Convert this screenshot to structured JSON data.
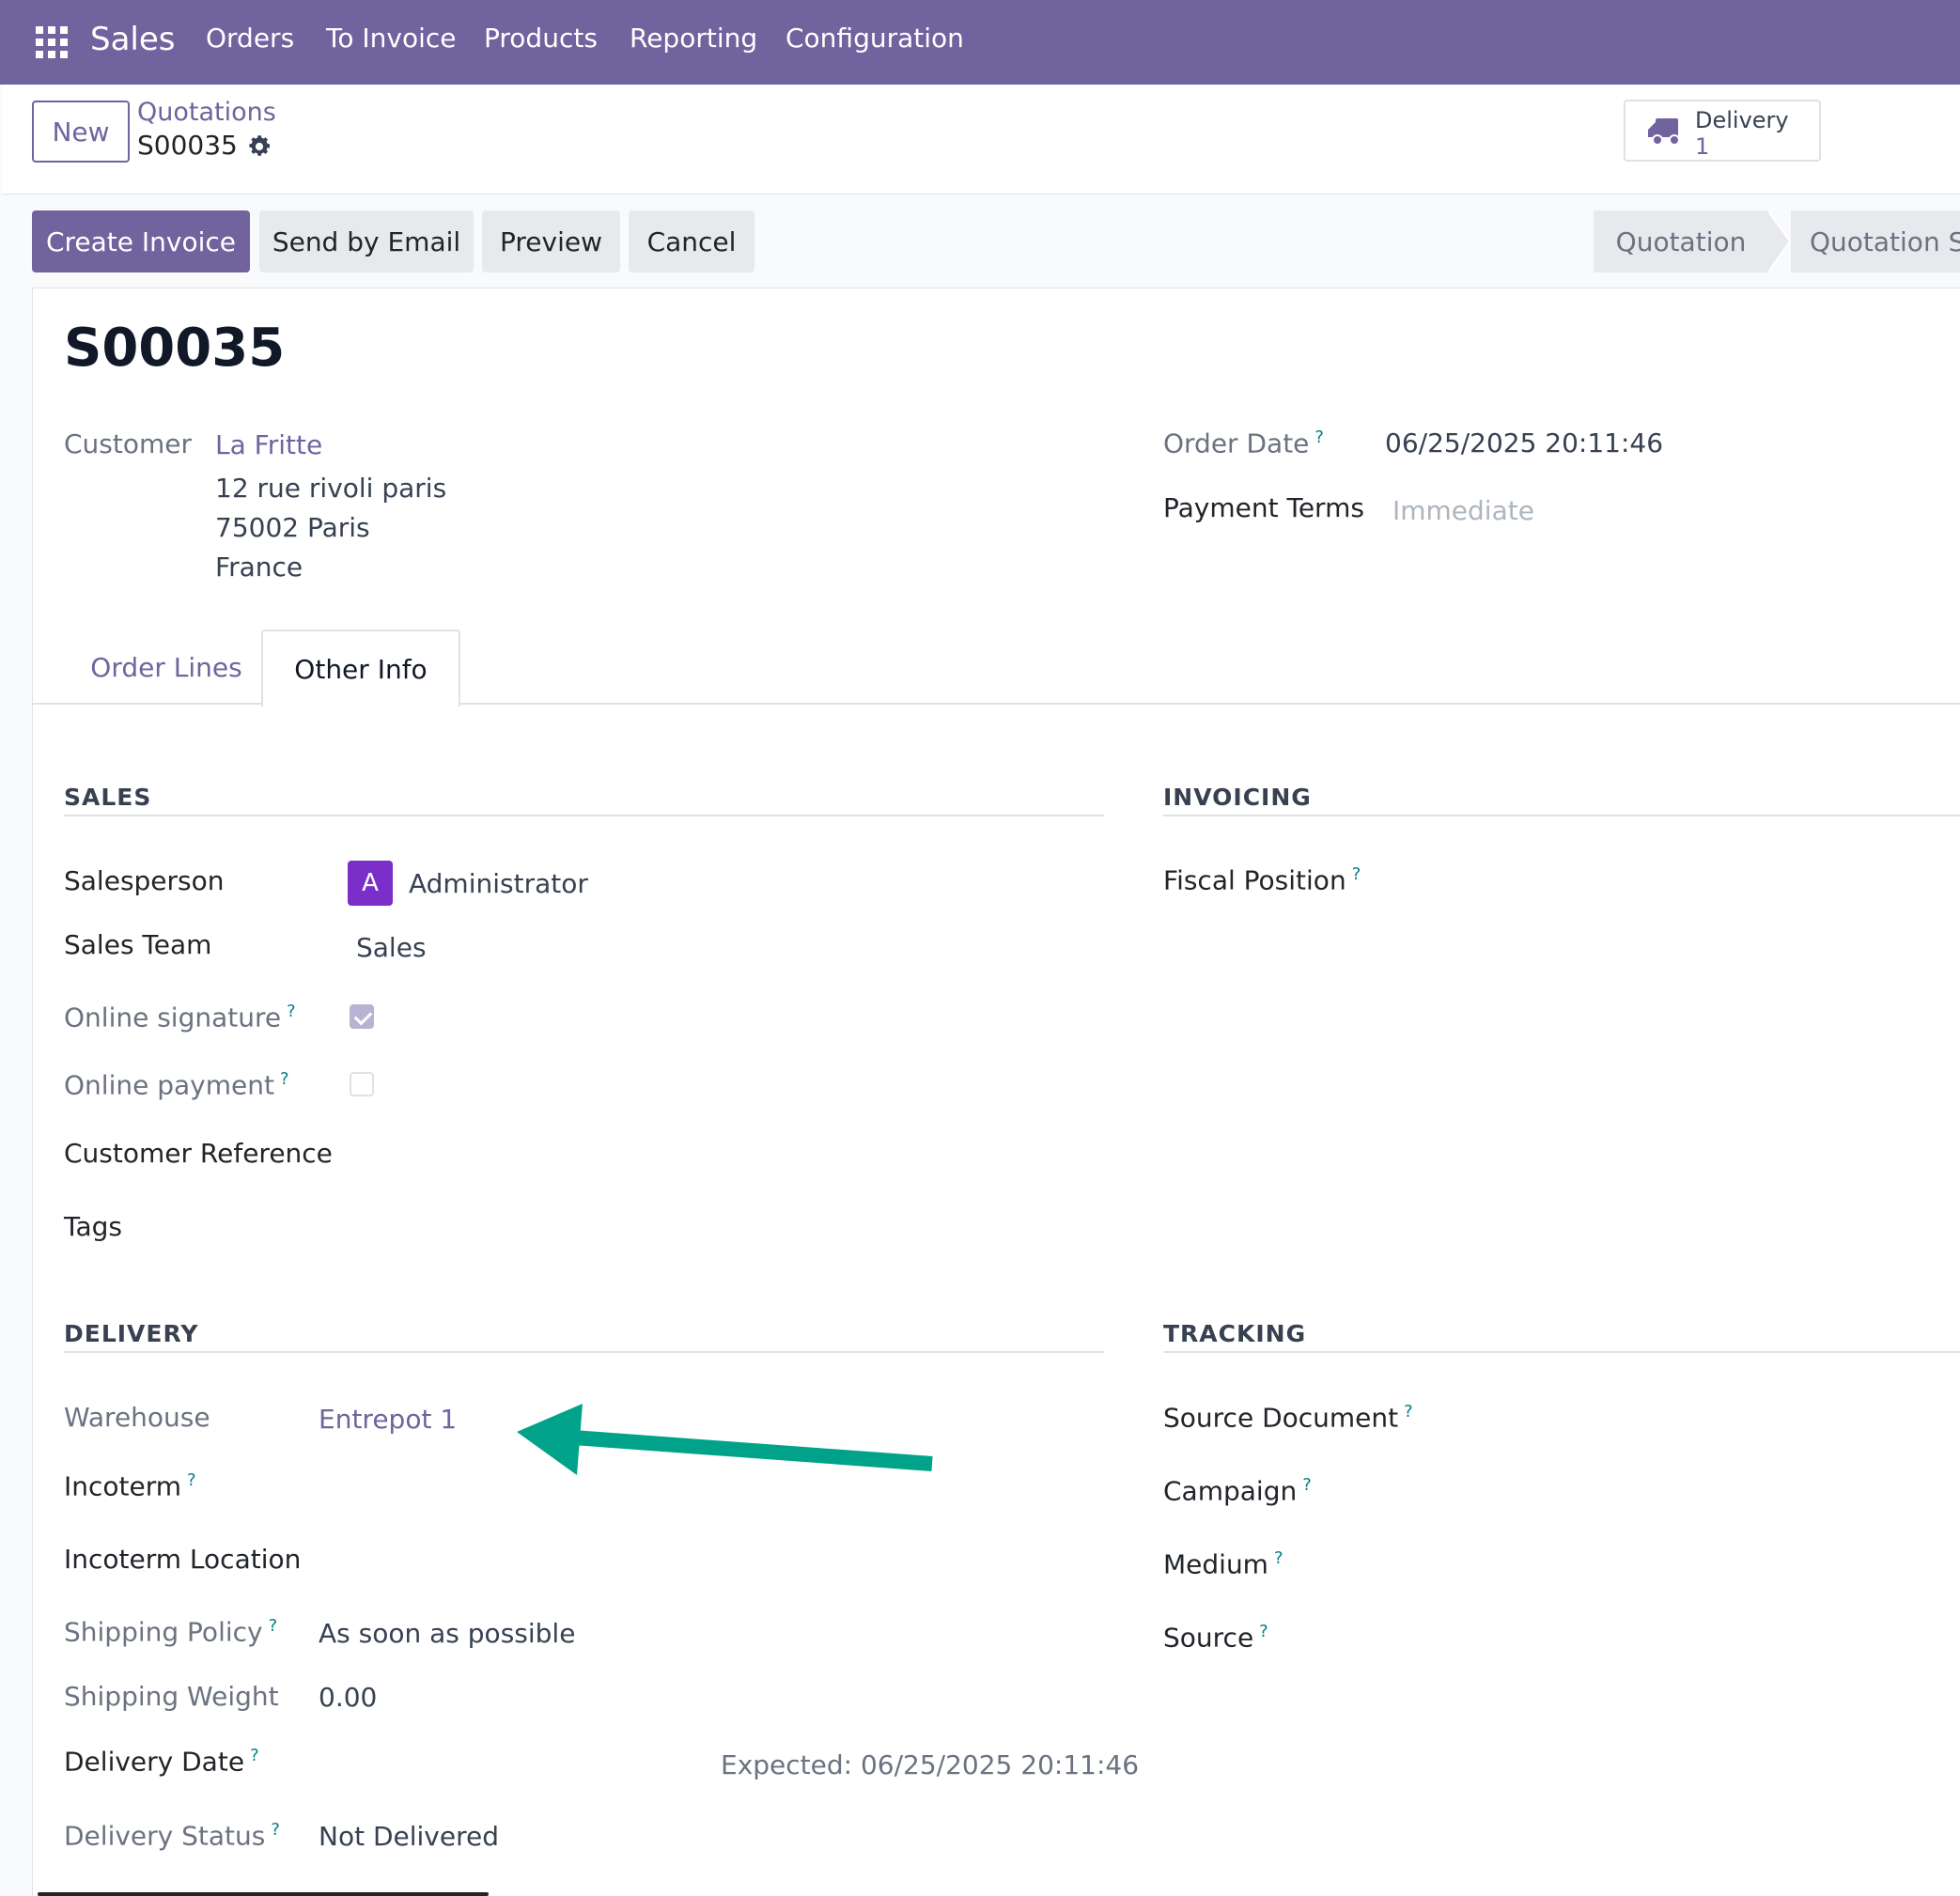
{
  "navbar": {
    "app_name": "Sales",
    "menu": [
      "Orders",
      "To Invoice",
      "Products",
      "Reporting",
      "Configuration"
    ]
  },
  "control_panel": {
    "new_label": "New",
    "breadcrumb_parent": "Quotations",
    "breadcrumb_current": "S00035",
    "delivery_label": "Delivery",
    "delivery_count": "1"
  },
  "actions": {
    "create_invoice": "Create Invoice",
    "send_by_email": "Send by Email",
    "preview": "Preview",
    "cancel": "Cancel"
  },
  "status_bar": {
    "steps": [
      "Quotation",
      "Quotation Se"
    ]
  },
  "record": {
    "name": "S00035",
    "customer_label": "Customer",
    "customer_name": "La Fritte",
    "address_line1": "12 rue rivoli paris",
    "address_line2": "75002 Paris",
    "address_line3": "France",
    "order_date_label": "Order Date",
    "order_date": "06/25/2025 20:11:46",
    "payment_terms_label": "Payment Terms",
    "payment_terms_placeholder": "Immediate"
  },
  "tabs": [
    "Order Lines",
    "Other Info"
  ],
  "sales": {
    "title": "SALES",
    "salesperson_label": "Salesperson",
    "salesperson_initial": "A",
    "salesperson": "Administrator",
    "sales_team_label": "Sales Team",
    "sales_team": "Sales",
    "online_signature_label": "Online signature",
    "online_signature": true,
    "online_payment_label": "Online payment",
    "online_payment": false,
    "customer_reference_label": "Customer Reference",
    "tags_label": "Tags"
  },
  "invoicing": {
    "title": "INVOICING",
    "fiscal_position_label": "Fiscal Position"
  },
  "delivery": {
    "title": "DELIVERY",
    "warehouse_label": "Warehouse",
    "warehouse": "Entrepot 1",
    "incoterm_label": "Incoterm",
    "incoterm_location_label": "Incoterm Location",
    "shipping_policy_label": "Shipping Policy",
    "shipping_policy": "As soon as possible",
    "shipping_weight_label": "Shipping Weight",
    "shipping_weight": "0.00",
    "delivery_date_label": "Delivery Date",
    "expected": "Expected: 06/25/2025 20:11:46",
    "delivery_status_label": "Delivery Status",
    "delivery_status": "Not Delivered"
  },
  "tracking": {
    "title": "TRACKING",
    "source_document_label": "Source Document",
    "campaign_label": "Campaign",
    "medium_label": "Medium",
    "source_label": "Source"
  },
  "help_mark": "?",
  "colors": {
    "brand": "#71639e",
    "annotation_arrow": "#00a38a",
    "avatar": "#7b2fc9"
  }
}
